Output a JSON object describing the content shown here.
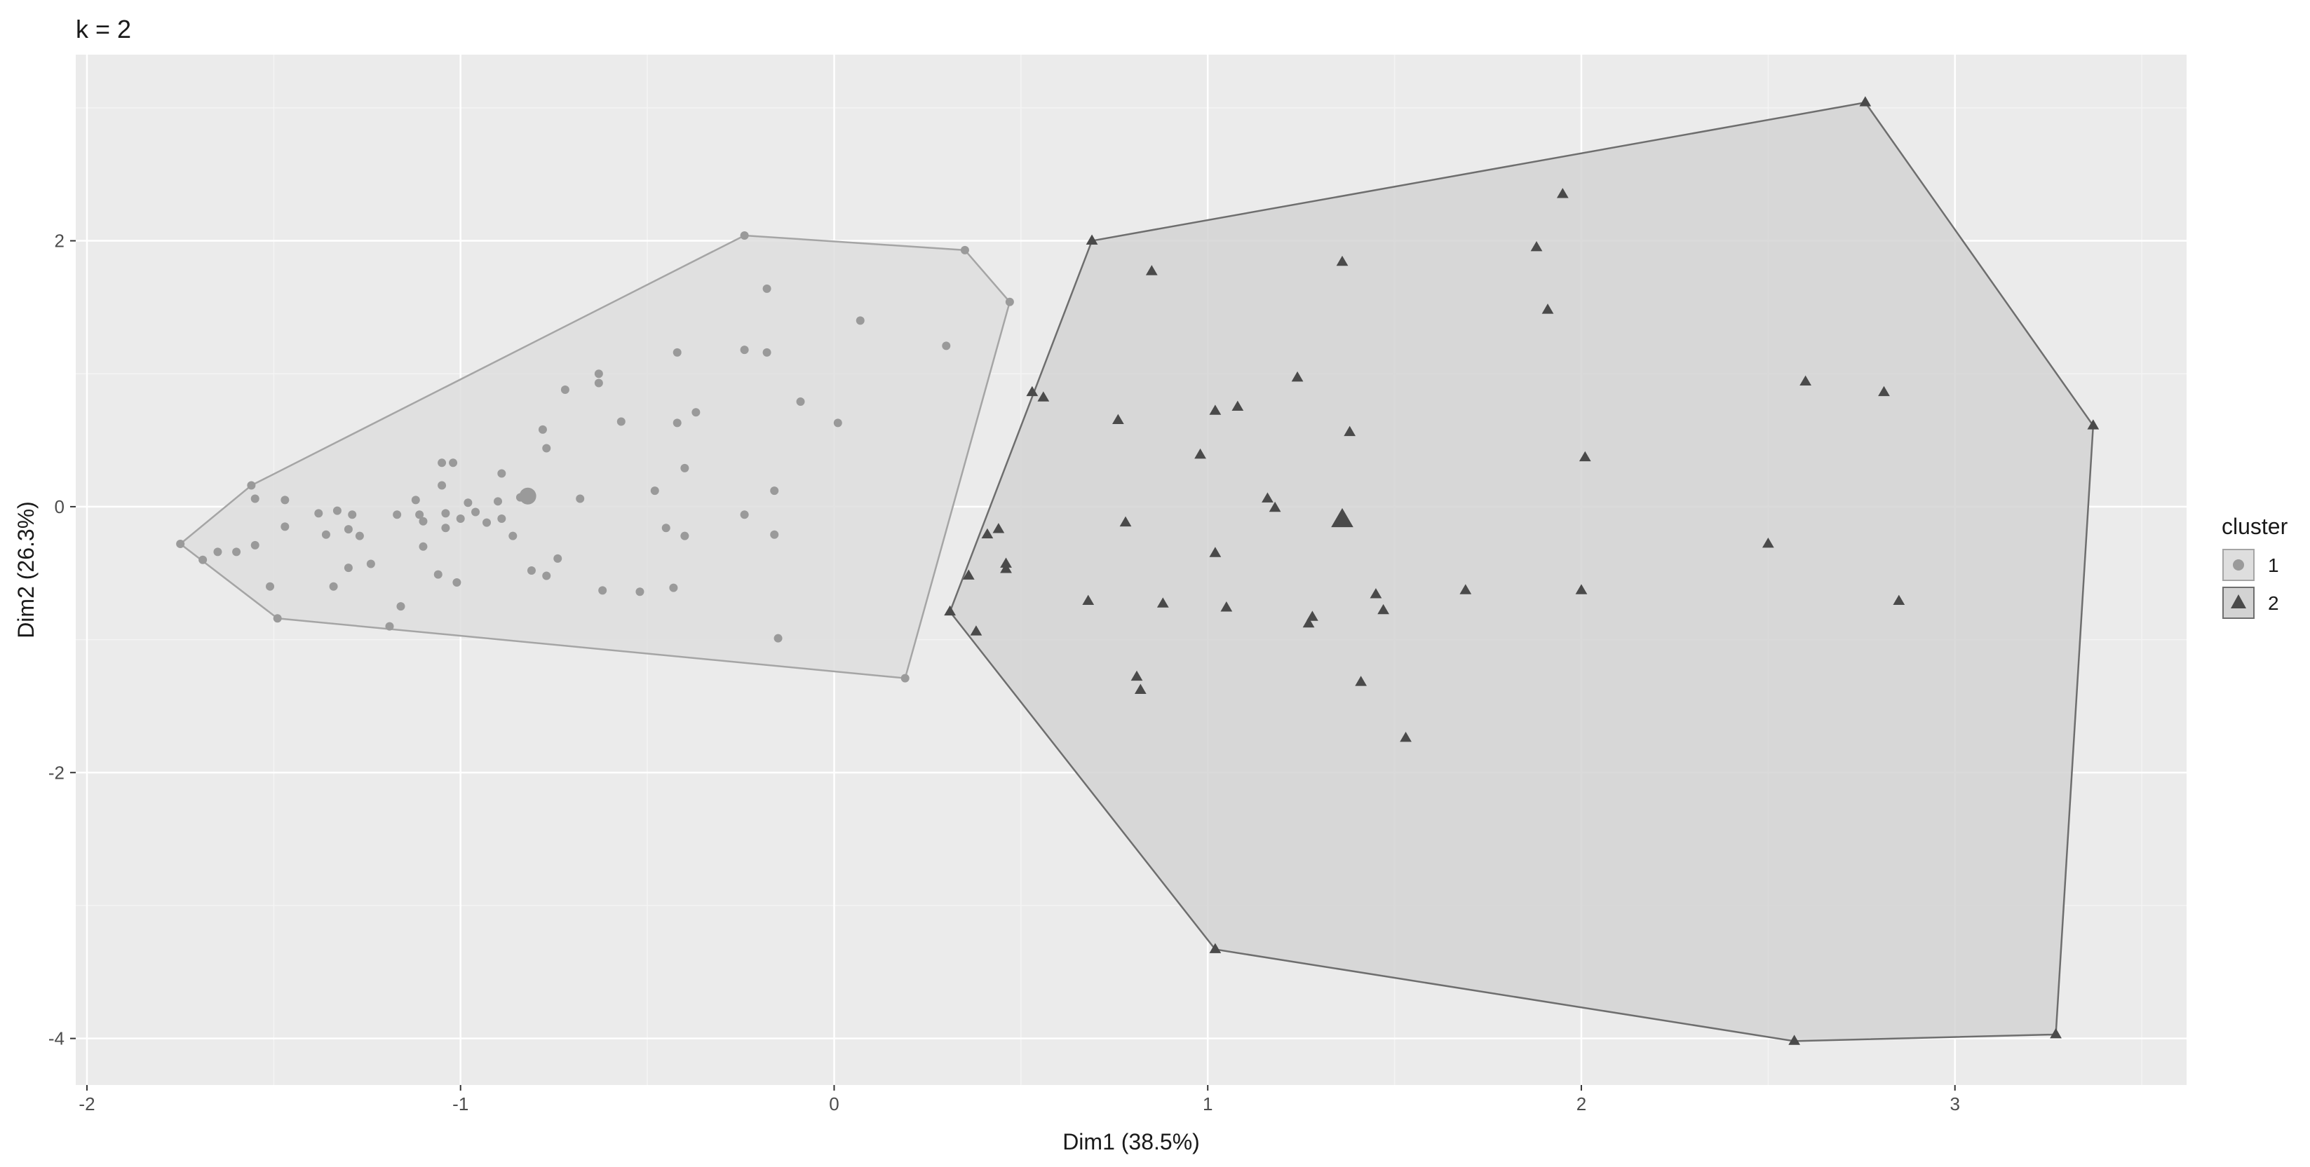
{
  "chart_data": {
    "type": "scatter",
    "title": "k = 2",
    "xlabel": "Dim1 (38.5%)",
    "ylabel": "Dim2 (26.3%)",
    "xlim": [
      -2.03,
      3.62
    ],
    "ylim": [
      -4.35,
      3.4
    ],
    "xticks": [
      -2,
      -1,
      0,
      1,
      2,
      3
    ],
    "yticks": [
      -4,
      -2,
      0,
      2
    ],
    "grid": true,
    "legend": {
      "title": "cluster",
      "position": "right"
    },
    "colors": {
      "panel": "#ebebeb",
      "grid_major": "#ffffff",
      "grid_minor": "#f4f4f4",
      "cluster1_point": "#9a9a9a",
      "cluster1_fill": "#dedede",
      "cluster1_line": "#a5a5a5",
      "cluster2_point": "#4a4a4a",
      "cluster2_fill": "#d3d3d3",
      "cluster2_line": "#6e6e6e"
    },
    "series": [
      {
        "name": "1",
        "shape": "circle",
        "hull": [
          [
            -1.75,
            -0.28
          ],
          [
            -1.49,
            -0.84
          ],
          [
            0.19,
            -1.29
          ],
          [
            0.47,
            1.54
          ],
          [
            0.35,
            1.93
          ],
          [
            -0.24,
            2.04
          ],
          [
            -1.56,
            0.16
          ]
        ],
        "centroid": [
          -0.82,
          0.08
        ],
        "points": [
          [
            -1.75,
            -0.28
          ],
          [
            -1.69,
            -0.4
          ],
          [
            -1.65,
            -0.34
          ],
          [
            -1.6,
            -0.34
          ],
          [
            -1.56,
            0.16
          ],
          [
            -1.55,
            0.06
          ],
          [
            -1.55,
            -0.29
          ],
          [
            -1.51,
            -0.6
          ],
          [
            -1.49,
            -0.84
          ],
          [
            -1.47,
            0.05
          ],
          [
            -1.47,
            -0.15
          ],
          [
            -1.38,
            -0.05
          ],
          [
            -1.36,
            -0.21
          ],
          [
            -1.34,
            -0.6
          ],
          [
            -1.33,
            -0.03
          ],
          [
            -1.3,
            -0.17
          ],
          [
            -1.3,
            -0.46
          ],
          [
            -1.29,
            -0.06
          ],
          [
            -1.27,
            -0.22
          ],
          [
            -1.24,
            -0.43
          ],
          [
            -1.19,
            -0.9
          ],
          [
            -1.17,
            -0.06
          ],
          [
            -1.16,
            -0.75
          ],
          [
            -1.12,
            0.05
          ],
          [
            -1.11,
            -0.06
          ],
          [
            -1.1,
            -0.11
          ],
          [
            -1.1,
            -0.3
          ],
          [
            -1.06,
            -0.51
          ],
          [
            -1.05,
            0.16
          ],
          [
            -1.05,
            0.33
          ],
          [
            -1.04,
            -0.05
          ],
          [
            -1.04,
            -0.16
          ],
          [
            -1.02,
            0.33
          ],
          [
            -1.01,
            -0.57
          ],
          [
            -1.0,
            -0.09
          ],
          [
            -0.98,
            0.03
          ],
          [
            -0.96,
            -0.04
          ],
          [
            -0.93,
            -0.12
          ],
          [
            -0.9,
            0.04
          ],
          [
            -0.89,
            0.25
          ],
          [
            -0.89,
            -0.09
          ],
          [
            -0.86,
            -0.22
          ],
          [
            -0.84,
            0.07
          ],
          [
            -0.83,
            0.08
          ],
          [
            -0.81,
            0.07
          ],
          [
            -0.81,
            -0.48
          ],
          [
            -0.78,
            0.58
          ],
          [
            -0.77,
            0.44
          ],
          [
            -0.77,
            -0.52
          ],
          [
            -0.74,
            -0.39
          ],
          [
            -0.72,
            0.88
          ],
          [
            -0.68,
            0.06
          ],
          [
            -0.63,
            1.0
          ],
          [
            -0.63,
            0.93
          ],
          [
            -0.62,
            -0.63
          ],
          [
            -0.57,
            0.64
          ],
          [
            -0.52,
            -0.64
          ],
          [
            -0.48,
            0.12
          ],
          [
            -0.45,
            -0.16
          ],
          [
            -0.43,
            -0.61
          ],
          [
            -0.42,
            1.16
          ],
          [
            -0.42,
            0.63
          ],
          [
            -0.4,
            -0.22
          ],
          [
            -0.4,
            0.29
          ],
          [
            -0.37,
            0.71
          ],
          [
            -0.24,
            2.04
          ],
          [
            -0.24,
            -0.06
          ],
          [
            -0.24,
            1.18
          ],
          [
            -0.18,
            1.64
          ],
          [
            -0.18,
            1.16
          ],
          [
            -0.16,
            0.12
          ],
          [
            -0.16,
            -0.21
          ],
          [
            -0.15,
            -0.99
          ],
          [
            -0.09,
            0.79
          ],
          [
            0.01,
            0.63
          ],
          [
            0.07,
            1.4
          ],
          [
            0.19,
            -1.29
          ],
          [
            0.3,
            1.21
          ],
          [
            0.35,
            1.93
          ],
          [
            0.47,
            1.54
          ]
        ]
      },
      {
        "name": "2",
        "shape": "triangle",
        "hull": [
          [
            0.31,
            -0.79
          ],
          [
            1.02,
            -3.33
          ],
          [
            2.57,
            -4.02
          ],
          [
            3.27,
            -3.97
          ],
          [
            3.37,
            0.61
          ],
          [
            2.76,
            3.04
          ],
          [
            0.69,
            2.0
          ]
        ],
        "centroid": [
          1.36,
          -0.1
        ],
        "points": [
          [
            0.31,
            -0.79
          ],
          [
            0.36,
            -0.52
          ],
          [
            0.38,
            -0.94
          ],
          [
            0.41,
            -0.21
          ],
          [
            0.44,
            -0.17
          ],
          [
            0.46,
            -0.43
          ],
          [
            0.46,
            -0.47
          ],
          [
            0.53,
            0.86
          ],
          [
            0.56,
            0.82
          ],
          [
            0.68,
            -0.71
          ],
          [
            0.69,
            2.0
          ],
          [
            0.76,
            0.65
          ],
          [
            0.78,
            -0.12
          ],
          [
            0.81,
            -1.28
          ],
          [
            0.82,
            -1.38
          ],
          [
            0.85,
            1.77
          ],
          [
            0.88,
            -0.73
          ],
          [
            0.98,
            0.39
          ],
          [
            1.02,
            0.72
          ],
          [
            1.02,
            -0.35
          ],
          [
            1.02,
            -3.33
          ],
          [
            1.05,
            -0.76
          ],
          [
            1.08,
            0.75
          ],
          [
            1.16,
            0.06
          ],
          [
            1.18,
            -0.01
          ],
          [
            1.24,
            0.97
          ],
          [
            1.27,
            -0.88
          ],
          [
            1.28,
            -0.83
          ],
          [
            1.36,
            1.84
          ],
          [
            1.38,
            0.56
          ],
          [
            1.41,
            -1.32
          ],
          [
            1.45,
            -0.66
          ],
          [
            1.47,
            -0.78
          ],
          [
            1.53,
            -1.74
          ],
          [
            1.69,
            -0.63
          ],
          [
            1.88,
            1.95
          ],
          [
            1.91,
            1.48
          ],
          [
            1.95,
            2.35
          ],
          [
            2.0,
            -0.63
          ],
          [
            2.01,
            0.37
          ],
          [
            2.5,
            -0.28
          ],
          [
            2.57,
            -4.02
          ],
          [
            2.6,
            0.94
          ],
          [
            2.76,
            3.04
          ],
          [
            2.81,
            0.86
          ],
          [
            2.85,
            -0.71
          ],
          [
            3.27,
            -3.97
          ],
          [
            3.37,
            0.61
          ]
        ]
      }
    ]
  }
}
